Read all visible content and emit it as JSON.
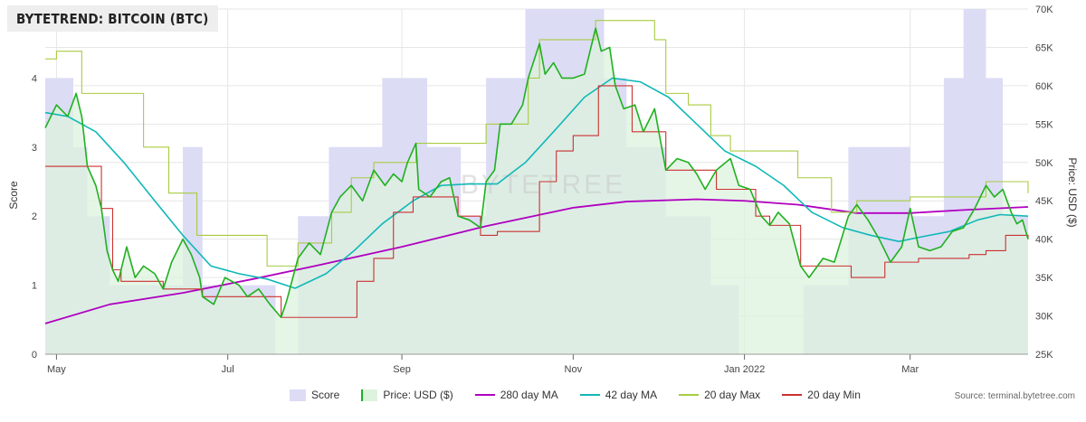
{
  "header": {
    "title": "BYTETREND: BITCOIN (BTC)"
  },
  "source": "Source: terminal.bytetree.com",
  "watermark": "BYTETREE",
  "colors": {
    "score_fill": "#dcdcf5",
    "price_fill": "#ddf3dd",
    "price_line": "#20b020",
    "ma280": "#b000c0",
    "ma42": "#10b8b8",
    "max20": "#a8cc40",
    "min20": "#cc3030",
    "grid": "#e6e6e6",
    "overlap_fill": "#c8e0d8"
  },
  "chart_data": {
    "type": "line",
    "title": "BYTETREND: BITCOIN (BTC)",
    "ylabel_left": "Score",
    "ylabel_right": "Price: USD ($)",
    "ylim_left": [
      0,
      5
    ],
    "ylim_right": [
      25000,
      70000
    ],
    "yticks_left": [
      "0",
      "1",
      "2",
      "3",
      "4"
    ],
    "yticks_right": [
      "25K",
      "30K",
      "35K",
      "40K",
      "45K",
      "50K",
      "55K",
      "60K",
      "65K",
      "70K"
    ],
    "x_range": [
      "2021-04-27",
      "2022-04-12"
    ],
    "x_ticks": [
      {
        "date": "2021-05-01",
        "label": "May"
      },
      {
        "date": "2021-07-01",
        "label": "Jul"
      },
      {
        "date": "2021-09-01",
        "label": "Sep"
      },
      {
        "date": "2021-11-01",
        "label": "Nov"
      },
      {
        "date": "2022-01-01",
        "label": "Jan 2022"
      },
      {
        "date": "2022-03-01",
        "label": "Mar"
      }
    ],
    "legend": [
      "Score",
      "Price: USD ($)",
      "280 day MA",
      "42 day MA",
      "20 day Max",
      "20 day Min"
    ],
    "series": [
      {
        "name": "Score",
        "type": "area-step",
        "axis": "left",
        "points": [
          [
            "2021-04-27",
            4.0
          ],
          [
            "2021-05-07",
            3.0
          ],
          [
            "2021-05-12",
            2.0
          ],
          [
            "2021-05-20",
            1.0
          ],
          [
            "2021-06-15",
            3.0
          ],
          [
            "2021-06-22",
            1.0
          ],
          [
            "2021-07-18",
            0.0
          ],
          [
            "2021-07-26",
            2.0
          ],
          [
            "2021-08-06",
            3.0
          ],
          [
            "2021-08-25",
            4.0
          ],
          [
            "2021-09-10",
            3.0
          ],
          [
            "2021-09-22",
            2.0
          ],
          [
            "2021-10-01",
            4.0
          ],
          [
            "2021-10-15",
            5.0
          ],
          [
            "2021-11-12",
            4.0
          ],
          [
            "2021-11-20",
            3.0
          ],
          [
            "2021-12-04",
            2.0
          ],
          [
            "2021-12-20",
            1.0
          ],
          [
            "2021-12-30",
            0.0
          ],
          [
            "2022-01-22",
            1.0
          ],
          [
            "2022-02-07",
            3.0
          ],
          [
            "2022-03-01",
            2.0
          ],
          [
            "2022-03-13",
            4.0
          ],
          [
            "2022-03-20",
            5.0
          ],
          [
            "2022-03-28",
            4.0
          ],
          [
            "2022-04-03",
            2.0
          ],
          [
            "2022-04-12",
            2.0
          ]
        ]
      },
      {
        "name": "Price: USD ($)",
        "type": "area",
        "axis": "right",
        "points": [
          [
            "2021-04-27",
            54500
          ],
          [
            "2021-05-01",
            57500
          ],
          [
            "2021-05-05",
            56000
          ],
          [
            "2021-05-08",
            59000
          ],
          [
            "2021-05-10",
            56000
          ],
          [
            "2021-05-12",
            49500
          ],
          [
            "2021-05-15",
            47000
          ],
          [
            "2021-05-17",
            44000
          ],
          [
            "2021-05-19",
            38500
          ],
          [
            "2021-05-21",
            36000
          ],
          [
            "2021-05-23",
            34500
          ],
          [
            "2021-05-26",
            39000
          ],
          [
            "2021-05-29",
            35000
          ],
          [
            "2021-06-01",
            36500
          ],
          [
            "2021-06-05",
            35500
          ],
          [
            "2021-06-08",
            33500
          ],
          [
            "2021-06-11",
            37000
          ],
          [
            "2021-06-15",
            40000
          ],
          [
            "2021-06-18",
            38000
          ],
          [
            "2021-06-21",
            35000
          ],
          [
            "2021-06-22",
            32500
          ],
          [
            "2021-06-26",
            31500
          ],
          [
            "2021-06-30",
            35000
          ],
          [
            "2021-07-05",
            34000
          ],
          [
            "2021-07-08",
            32500
          ],
          [
            "2021-07-12",
            33500
          ],
          [
            "2021-07-16",
            31500
          ],
          [
            "2021-07-20",
            29800
          ],
          [
            "2021-07-22",
            32000
          ],
          [
            "2021-07-26",
            37500
          ],
          [
            "2021-07-30",
            39500
          ],
          [
            "2021-08-03",
            38000
          ],
          [
            "2021-08-07",
            43500
          ],
          [
            "2021-08-10",
            45500
          ],
          [
            "2021-08-14",
            47000
          ],
          [
            "2021-08-18",
            45000
          ],
          [
            "2021-08-22",
            49000
          ],
          [
            "2021-08-26",
            47000
          ],
          [
            "2021-08-29",
            48500
          ],
          [
            "2021-09-01",
            47500
          ],
          [
            "2021-09-03",
            50000
          ],
          [
            "2021-09-06",
            52500
          ],
          [
            "2021-09-07",
            46500
          ],
          [
            "2021-09-11",
            45500
          ],
          [
            "2021-09-15",
            47500
          ],
          [
            "2021-09-18",
            48000
          ],
          [
            "2021-09-21",
            43000
          ],
          [
            "2021-09-25",
            42500
          ],
          [
            "2021-09-29",
            41500
          ],
          [
            "2021-10-01",
            47500
          ],
          [
            "2021-10-04",
            49000
          ],
          [
            "2021-10-06",
            55000
          ],
          [
            "2021-10-10",
            55000
          ],
          [
            "2021-10-14",
            57500
          ],
          [
            "2021-10-16",
            61000
          ],
          [
            "2021-10-20",
            65500
          ],
          [
            "2021-10-22",
            61500
          ],
          [
            "2021-10-25",
            63000
          ],
          [
            "2021-10-28",
            61000
          ],
          [
            "2021-11-01",
            61000
          ],
          [
            "2021-11-05",
            61500
          ],
          [
            "2021-11-09",
            67500
          ],
          [
            "2021-11-11",
            64500
          ],
          [
            "2021-11-14",
            65000
          ],
          [
            "2021-11-16",
            60000
          ],
          [
            "2021-11-19",
            57000
          ],
          [
            "2021-11-23",
            57500
          ],
          [
            "2021-11-26",
            54000
          ],
          [
            "2021-11-30",
            57000
          ],
          [
            "2021-12-04",
            49000
          ],
          [
            "2021-12-08",
            50500
          ],
          [
            "2021-12-12",
            50000
          ],
          [
            "2021-12-15",
            48500
          ],
          [
            "2021-12-18",
            46500
          ],
          [
            "2021-12-22",
            49000
          ],
          [
            "2021-12-27",
            50500
          ],
          [
            "2021-12-30",
            47000
          ],
          [
            "2022-01-03",
            46500
          ],
          [
            "2022-01-07",
            43000
          ],
          [
            "2022-01-10",
            41800
          ],
          [
            "2022-01-13",
            43500
          ],
          [
            "2022-01-17",
            42000
          ],
          [
            "2022-01-21",
            36500
          ],
          [
            "2022-01-24",
            35000
          ],
          [
            "2022-01-29",
            37500
          ],
          [
            "2022-02-02",
            37000
          ],
          [
            "2022-02-07",
            43000
          ],
          [
            "2022-02-10",
            44500
          ],
          [
            "2022-02-14",
            42500
          ],
          [
            "2022-02-18",
            40000
          ],
          [
            "2022-02-22",
            37000
          ],
          [
            "2022-02-26",
            39000
          ],
          [
            "2022-03-01",
            44000
          ],
          [
            "2022-03-04",
            39000
          ],
          [
            "2022-03-08",
            38500
          ],
          [
            "2022-03-12",
            39000
          ],
          [
            "2022-03-16",
            41000
          ],
          [
            "2022-03-20",
            41500
          ],
          [
            "2022-03-24",
            44000
          ],
          [
            "2022-03-28",
            47000
          ],
          [
            "2022-03-31",
            45500
          ],
          [
            "2022-04-03",
            46500
          ],
          [
            "2022-04-06",
            43500
          ],
          [
            "2022-04-08",
            42000
          ],
          [
            "2022-04-10",
            42500
          ],
          [
            "2022-04-12",
            40000
          ]
        ]
      },
      {
        "name": "280 day MA",
        "type": "line",
        "axis": "right",
        "points": [
          [
            "2021-04-27",
            29000
          ],
          [
            "2021-05-20",
            31500
          ],
          [
            "2021-06-15",
            33000
          ],
          [
            "2021-07-10",
            34800
          ],
          [
            "2021-08-01",
            36500
          ],
          [
            "2021-09-01",
            39000
          ],
          [
            "2021-10-01",
            41700
          ],
          [
            "2021-11-01",
            44100
          ],
          [
            "2021-11-20",
            44900
          ],
          [
            "2021-12-15",
            45200
          ],
          [
            "2022-01-01",
            45000
          ],
          [
            "2022-01-20",
            44500
          ],
          [
            "2022-02-10",
            43400
          ],
          [
            "2022-03-01",
            43400
          ],
          [
            "2022-03-20",
            43800
          ],
          [
            "2022-04-12",
            44200
          ]
        ]
      },
      {
        "name": "42 day MA",
        "type": "line",
        "axis": "right",
        "points": [
          [
            "2021-04-27",
            56500
          ],
          [
            "2021-05-05",
            56000
          ],
          [
            "2021-05-15",
            54000
          ],
          [
            "2021-05-25",
            50000
          ],
          [
            "2021-06-05",
            45000
          ],
          [
            "2021-06-15",
            40500
          ],
          [
            "2021-06-25",
            36500
          ],
          [
            "2021-07-05",
            35500
          ],
          [
            "2021-07-15",
            34800
          ],
          [
            "2021-07-25",
            33600
          ],
          [
            "2021-08-05",
            35500
          ],
          [
            "2021-08-15",
            38500
          ],
          [
            "2021-08-25",
            42000
          ],
          [
            "2021-09-05",
            45000
          ],
          [
            "2021-09-15",
            47000
          ],
          [
            "2021-09-25",
            47200
          ],
          [
            "2021-10-05",
            47200
          ],
          [
            "2021-10-15",
            50000
          ],
          [
            "2021-10-25",
            54000
          ],
          [
            "2021-11-05",
            58500
          ],
          [
            "2021-11-15",
            61000
          ],
          [
            "2021-11-25",
            60500
          ],
          [
            "2021-12-05",
            58500
          ],
          [
            "2021-12-15",
            55000
          ],
          [
            "2021-12-25",
            51500
          ],
          [
            "2022-01-05",
            49500
          ],
          [
            "2022-01-15",
            47000
          ],
          [
            "2022-01-25",
            43500
          ],
          [
            "2022-02-05",
            41500
          ],
          [
            "2022-02-15",
            40500
          ],
          [
            "2022-02-25",
            39700
          ],
          [
            "2022-03-05",
            40300
          ],
          [
            "2022-03-15",
            41000
          ],
          [
            "2022-03-25",
            42500
          ],
          [
            "2022-04-02",
            43200
          ],
          [
            "2022-04-12",
            43000
          ]
        ]
      },
      {
        "name": "20 day Max",
        "type": "step",
        "axis": "right",
        "points": [
          [
            "2021-04-27",
            63500
          ],
          [
            "2021-05-01",
            64500
          ],
          [
            "2021-05-10",
            59000
          ],
          [
            "2021-05-20",
            59000
          ],
          [
            "2021-06-01",
            52000
          ],
          [
            "2021-06-10",
            46000
          ],
          [
            "2021-06-20",
            40500
          ],
          [
            "2021-07-07",
            40500
          ],
          [
            "2021-07-15",
            36500
          ],
          [
            "2021-07-26",
            39500
          ],
          [
            "2021-08-07",
            43500
          ],
          [
            "2021-08-14",
            48000
          ],
          [
            "2021-08-22",
            50000
          ],
          [
            "2021-09-06",
            52500
          ],
          [
            "2021-09-27",
            52500
          ],
          [
            "2021-10-01",
            55000
          ],
          [
            "2021-10-16",
            61000
          ],
          [
            "2021-10-20",
            66000
          ],
          [
            "2021-11-09",
            68500
          ],
          [
            "2021-11-30",
            66000
          ],
          [
            "2021-12-04",
            59000
          ],
          [
            "2021-12-12",
            57500
          ],
          [
            "2021-12-20",
            53500
          ],
          [
            "2021-12-27",
            51500
          ],
          [
            "2022-01-10",
            51500
          ],
          [
            "2022-01-20",
            48000
          ],
          [
            "2022-02-01",
            43500
          ],
          [
            "2022-02-10",
            45000
          ],
          [
            "2022-03-01",
            45500
          ],
          [
            "2022-03-28",
            47500
          ],
          [
            "2022-04-10",
            47500
          ],
          [
            "2022-04-12",
            46000
          ]
        ]
      },
      {
        "name": "20 day Min",
        "type": "step",
        "axis": "right",
        "points": [
          [
            "2021-04-27",
            49500
          ],
          [
            "2021-05-12",
            49500
          ],
          [
            "2021-05-17",
            44000
          ],
          [
            "2021-05-21",
            36000
          ],
          [
            "2021-05-24",
            34500
          ],
          [
            "2021-06-08",
            33500
          ],
          [
            "2021-06-22",
            32500
          ],
          [
            "2021-07-08",
            32500
          ],
          [
            "2021-07-20",
            29800
          ],
          [
            "2021-08-12",
            29800
          ],
          [
            "2021-08-16",
            34500
          ],
          [
            "2021-08-22",
            37500
          ],
          [
            "2021-08-29",
            43500
          ],
          [
            "2021-09-05",
            45500
          ],
          [
            "2021-09-21",
            43000
          ],
          [
            "2021-09-29",
            40500
          ],
          [
            "2021-10-05",
            41000
          ],
          [
            "2021-10-20",
            47500
          ],
          [
            "2021-10-26",
            51500
          ],
          [
            "2021-11-01",
            53500
          ],
          [
            "2021-11-10",
            60000
          ],
          [
            "2021-11-22",
            54000
          ],
          [
            "2021-12-04",
            49000
          ],
          [
            "2021-12-22",
            46500
          ],
          [
            "2022-01-05",
            43000
          ],
          [
            "2022-01-10",
            41800
          ],
          [
            "2022-01-21",
            36500
          ],
          [
            "2022-02-08",
            35000
          ],
          [
            "2022-02-20",
            37000
          ],
          [
            "2022-03-04",
            37500
          ],
          [
            "2022-03-22",
            38000
          ],
          [
            "2022-03-28",
            38500
          ],
          [
            "2022-04-04",
            40500
          ],
          [
            "2022-04-12",
            40000
          ]
        ]
      }
    ]
  }
}
